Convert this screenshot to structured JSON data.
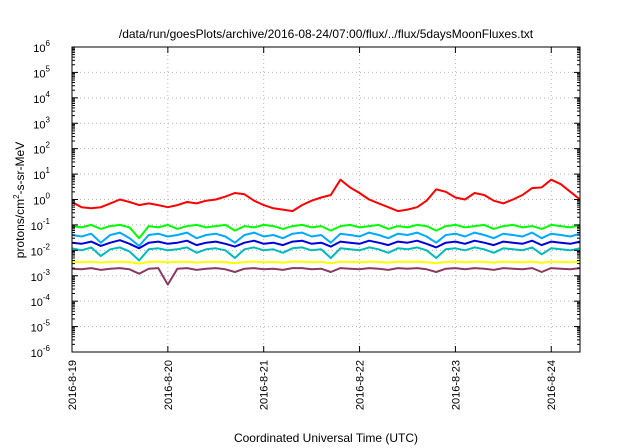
{
  "chart_data": {
    "type": "line",
    "title": "/data/run/goesPlots/archive/2016-08-24/07:00/flux/../flux/5daysMoonFluxes.txt",
    "xlabel": "Coordinated Universal Time (UTC)",
    "ylabel": {
      "base": "protons/cm",
      "sup": "2",
      "rest": "-s-sr-MeV"
    },
    "yscale": "log",
    "ylim_exp": [
      -6,
      6
    ],
    "ytick_base": "10",
    "yticks_exp": [
      "-6",
      "-5",
      "-4",
      "-3",
      "-2",
      "-1",
      "0",
      "1",
      "2",
      "3",
      "4",
      "5",
      "6"
    ],
    "xlim_days": [
      0,
      5.3
    ],
    "xticks": [
      {
        "label": "2016-8-19",
        "day": 0
      },
      {
        "label": "2016-8-20",
        "day": 1
      },
      {
        "label": "2016-8-21",
        "day": 2
      },
      {
        "label": "2016-8-22",
        "day": 3
      },
      {
        "label": "2016-8-23",
        "day": 4
      },
      {
        "label": "2016-8-24",
        "day": 5
      }
    ],
    "grid": true,
    "series": [
      {
        "color": "#ff0000",
        "x": [
          0,
          0.1,
          0.2,
          0.3,
          0.4,
          0.5,
          0.6,
          0.7,
          0.8,
          0.9,
          1.0,
          1.1,
          1.2,
          1.3,
          1.4,
          1.5,
          1.6,
          1.7,
          1.8,
          1.9,
          2.0,
          2.1,
          2.2,
          2.3,
          2.4,
          2.5,
          2.6,
          2.7,
          2.8,
          2.9,
          3.0,
          3.1,
          3.2,
          3.3,
          3.4,
          3.5,
          3.6,
          3.7,
          3.8,
          3.9,
          4.0,
          4.1,
          4.2,
          4.3,
          4.4,
          4.5,
          4.6,
          4.7,
          4.8,
          4.9,
          5.0,
          5.1,
          5.2,
          5.3
        ],
        "y": [
          0.8,
          0.5,
          0.45,
          0.5,
          0.7,
          1.0,
          0.8,
          0.6,
          0.7,
          0.6,
          0.5,
          0.6,
          0.8,
          0.7,
          0.9,
          1.0,
          1.3,
          1.8,
          1.6,
          0.9,
          0.6,
          0.45,
          0.4,
          0.35,
          0.6,
          0.9,
          1.2,
          1.5,
          6.0,
          3.0,
          1.8,
          1.0,
          0.7,
          0.5,
          0.35,
          0.4,
          0.5,
          0.9,
          2.5,
          2.0,
          1.2,
          1.0,
          1.8,
          1.5,
          0.9,
          0.7,
          1.0,
          1.5,
          2.8,
          3.0,
          6.0,
          4.0,
          2.0,
          1.0
        ]
      },
      {
        "color": "#00ff00",
        "x": [
          0,
          0.1,
          0.2,
          0.3,
          0.4,
          0.5,
          0.6,
          0.7,
          0.8,
          0.9,
          1.0,
          1.1,
          1.2,
          1.3,
          1.4,
          1.5,
          1.6,
          1.7,
          1.8,
          1.9,
          2.0,
          2.1,
          2.2,
          2.3,
          2.4,
          2.5,
          2.6,
          2.7,
          2.8,
          2.9,
          3.0,
          3.1,
          3.2,
          3.3,
          3.4,
          3.5,
          3.6,
          3.7,
          3.8,
          3.9,
          4.0,
          4.1,
          4.2,
          4.3,
          4.4,
          4.5,
          4.6,
          4.7,
          4.8,
          4.9,
          5.0,
          5.1,
          5.2,
          5.3
        ],
        "y": [
          0.09,
          0.08,
          0.1,
          0.07,
          0.09,
          0.1,
          0.08,
          0.03,
          0.09,
          0.08,
          0.1,
          0.07,
          0.09,
          0.1,
          0.08,
          0.09,
          0.1,
          0.06,
          0.09,
          0.08,
          0.1,
          0.09,
          0.07,
          0.09,
          0.1,
          0.08,
          0.09,
          0.06,
          0.09,
          0.1,
          0.08,
          0.09,
          0.1,
          0.07,
          0.09,
          0.08,
          0.1,
          0.09,
          0.06,
          0.09,
          0.1,
          0.08,
          0.09,
          0.1,
          0.07,
          0.09,
          0.1,
          0.08,
          0.09,
          0.07,
          0.1,
          0.09,
          0.08,
          0.1
        ]
      },
      {
        "color": "#00aaff",
        "x": [
          0,
          0.1,
          0.2,
          0.3,
          0.4,
          0.5,
          0.6,
          0.7,
          0.8,
          0.9,
          1.0,
          1.1,
          1.2,
          1.3,
          1.4,
          1.5,
          1.6,
          1.7,
          1.8,
          1.9,
          2.0,
          2.1,
          2.2,
          2.3,
          2.4,
          2.5,
          2.6,
          2.7,
          2.8,
          2.9,
          3.0,
          3.1,
          3.2,
          3.3,
          3.4,
          3.5,
          3.6,
          3.7,
          3.8,
          3.9,
          4.0,
          4.1,
          4.2,
          4.3,
          4.4,
          4.5,
          4.6,
          4.7,
          4.8,
          4.9,
          5.0,
          5.1,
          5.2,
          5.3
        ],
        "y": [
          0.04,
          0.035,
          0.045,
          0.02,
          0.04,
          0.05,
          0.03,
          0.015,
          0.04,
          0.045,
          0.035,
          0.04,
          0.05,
          0.03,
          0.04,
          0.045,
          0.035,
          0.02,
          0.04,
          0.05,
          0.035,
          0.04,
          0.03,
          0.045,
          0.05,
          0.035,
          0.04,
          0.02,
          0.045,
          0.04,
          0.035,
          0.05,
          0.04,
          0.03,
          0.045,
          0.04,
          0.05,
          0.035,
          0.02,
          0.04,
          0.045,
          0.035,
          0.05,
          0.04,
          0.03,
          0.045,
          0.04,
          0.035,
          0.05,
          0.03,
          0.045,
          0.04,
          0.035,
          0.045
        ]
      },
      {
        "color": "#0000dd",
        "x": [
          0,
          0.1,
          0.2,
          0.3,
          0.4,
          0.5,
          0.6,
          0.7,
          0.8,
          0.9,
          1.0,
          1.1,
          1.2,
          1.3,
          1.4,
          1.5,
          1.6,
          1.7,
          1.8,
          1.9,
          2.0,
          2.1,
          2.2,
          2.3,
          2.4,
          2.5,
          2.6,
          2.7,
          2.8,
          2.9,
          3.0,
          3.1,
          3.2,
          3.3,
          3.4,
          3.5,
          3.6,
          3.7,
          3.8,
          3.9,
          4.0,
          4.1,
          4.2,
          4.3,
          4.4,
          4.5,
          4.6,
          4.7,
          4.8,
          4.9,
          5.0,
          5.1,
          5.2,
          5.3
        ],
        "y": [
          0.02,
          0.018,
          0.022,
          0.015,
          0.02,
          0.025,
          0.018,
          0.012,
          0.02,
          0.022,
          0.018,
          0.02,
          0.024,
          0.016,
          0.02,
          0.022,
          0.018,
          0.014,
          0.02,
          0.024,
          0.018,
          0.02,
          0.016,
          0.022,
          0.024,
          0.018,
          0.02,
          0.014,
          0.022,
          0.02,
          0.018,
          0.024,
          0.02,
          0.016,
          0.022,
          0.02,
          0.024,
          0.018,
          0.013,
          0.02,
          0.022,
          0.018,
          0.024,
          0.02,
          0.016,
          0.022,
          0.02,
          0.018,
          0.024,
          0.016,
          0.022,
          0.02,
          0.018,
          0.022
        ]
      },
      {
        "color": "#00bbbb",
        "x": [
          0,
          0.1,
          0.2,
          0.3,
          0.4,
          0.5,
          0.6,
          0.7,
          0.8,
          0.9,
          1.0,
          1.1,
          1.2,
          1.3,
          1.4,
          1.5,
          1.6,
          1.7,
          1.8,
          1.9,
          2.0,
          2.1,
          2.2,
          2.3,
          2.4,
          2.5,
          2.6,
          2.7,
          2.8,
          2.9,
          3.0,
          3.1,
          3.2,
          3.3,
          3.4,
          3.5,
          3.6,
          3.7,
          3.8,
          3.9,
          4.0,
          4.1,
          4.2,
          4.3,
          4.4,
          4.5,
          4.6,
          4.7,
          4.8,
          4.9,
          5.0,
          5.1,
          5.2,
          5.3
        ],
        "y": [
          0.012,
          0.01,
          0.013,
          0.006,
          0.011,
          0.013,
          0.009,
          0.004,
          0.011,
          0.012,
          0.01,
          0.011,
          0.013,
          0.008,
          0.011,
          0.012,
          0.01,
          0.005,
          0.011,
          0.013,
          0.01,
          0.011,
          0.008,
          0.012,
          0.013,
          0.01,
          0.011,
          0.005,
          0.012,
          0.011,
          0.01,
          0.013,
          0.011,
          0.008,
          0.012,
          0.011,
          0.013,
          0.01,
          0.005,
          0.011,
          0.012,
          0.01,
          0.013,
          0.011,
          0.008,
          0.012,
          0.011,
          0.01,
          0.013,
          0.007,
          0.012,
          0.011,
          0.01,
          0.012
        ]
      },
      {
        "color": "#ffff00",
        "x": [
          0,
          0.1,
          0.2,
          0.3,
          0.4,
          0.5,
          0.6,
          0.7,
          0.8,
          0.9,
          1.0,
          1.1,
          1.2,
          1.3,
          1.4,
          1.5,
          1.6,
          1.7,
          1.8,
          1.9,
          2.0,
          2.1,
          2.2,
          2.3,
          2.4,
          2.5,
          2.6,
          2.7,
          2.8,
          2.9,
          3.0,
          3.1,
          3.2,
          3.3,
          3.4,
          3.5,
          3.6,
          3.7,
          3.8,
          3.9,
          4.0,
          4.1,
          4.2,
          4.3,
          4.4,
          4.5,
          4.6,
          4.7,
          4.8,
          4.9,
          5.0,
          5.1,
          5.2,
          5.3
        ],
        "y": [
          0.0035,
          0.0034,
          0.0036,
          0.0033,
          0.0035,
          0.0036,
          0.0034,
          0.003,
          0.0035,
          0.0036,
          0.0034,
          0.0035,
          0.0036,
          0.0033,
          0.0035,
          0.0036,
          0.0034,
          0.0031,
          0.0035,
          0.0036,
          0.0034,
          0.0035,
          0.0033,
          0.0036,
          0.0036,
          0.0034,
          0.0035,
          0.0031,
          0.0036,
          0.0035,
          0.0034,
          0.0036,
          0.0035,
          0.0033,
          0.0036,
          0.0035,
          0.0036,
          0.0034,
          0.0031,
          0.0035,
          0.0036,
          0.0034,
          0.0036,
          0.0035,
          0.0033,
          0.0036,
          0.0035,
          0.0034,
          0.0036,
          0.0032,
          0.0036,
          0.0035,
          0.0034,
          0.0036
        ]
      },
      {
        "color": "#8b3a62",
        "x": [
          0,
          0.1,
          0.2,
          0.3,
          0.4,
          0.5,
          0.6,
          0.7,
          0.8,
          0.9,
          1.0,
          1.1,
          1.2,
          1.3,
          1.4,
          1.5,
          1.6,
          1.7,
          1.8,
          1.9,
          2.0,
          2.1,
          2.2,
          2.3,
          2.4,
          2.5,
          2.6,
          2.7,
          2.8,
          2.9,
          3.0,
          3.1,
          3.2,
          3.3,
          3.4,
          3.5,
          3.6,
          3.7,
          3.8,
          3.9,
          4.0,
          4.1,
          4.2,
          4.3,
          4.4,
          4.5,
          4.6,
          4.7,
          4.8,
          4.9,
          5.0,
          5.1,
          5.2,
          5.3
        ],
        "y": [
          0.0019,
          0.0018,
          0.002,
          0.0017,
          0.0019,
          0.002,
          0.0018,
          0.0012,
          0.0019,
          0.002,
          0.00045,
          0.0019,
          0.002,
          0.0017,
          0.0019,
          0.002,
          0.0018,
          0.0014,
          0.0019,
          0.002,
          0.0018,
          0.0019,
          0.0017,
          0.002,
          0.002,
          0.0018,
          0.0019,
          0.0014,
          0.002,
          0.0019,
          0.0018,
          0.002,
          0.0019,
          0.0017,
          0.002,
          0.0019,
          0.002,
          0.0018,
          0.0014,
          0.0019,
          0.002,
          0.0018,
          0.002,
          0.0019,
          0.0017,
          0.002,
          0.0019,
          0.0018,
          0.002,
          0.0014,
          0.002,
          0.0019,
          0.0018,
          0.002
        ]
      }
    ]
  }
}
